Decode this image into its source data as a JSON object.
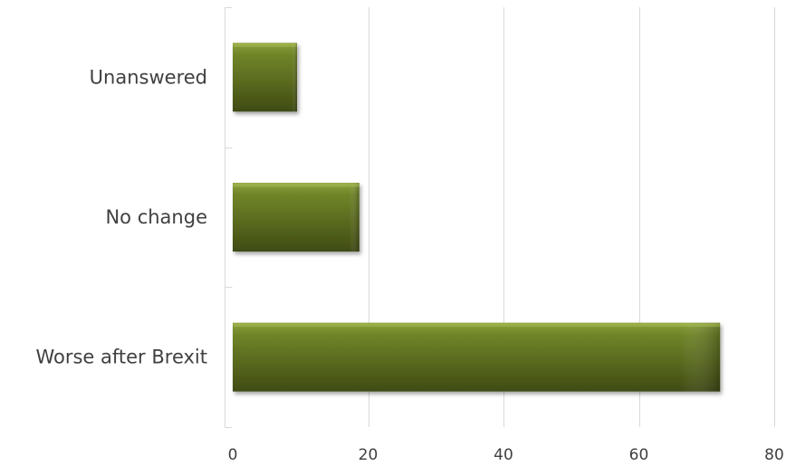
{
  "chart_data": {
    "type": "bar",
    "orientation": "horizontal",
    "categories": [
      "Unanswered",
      "No change",
      "Worse after Brexit"
    ],
    "series": [
      {
        "values": [
          9.5,
          18.7,
          72
        ]
      }
    ],
    "xlim": [
      0,
      80
    ],
    "xticks": [
      0,
      20,
      40,
      60,
      80
    ],
    "grid": "vertical",
    "legend": "none",
    "bar_color": "#5b6b1f",
    "title": "",
    "xlabel": "",
    "ylabel": ""
  }
}
